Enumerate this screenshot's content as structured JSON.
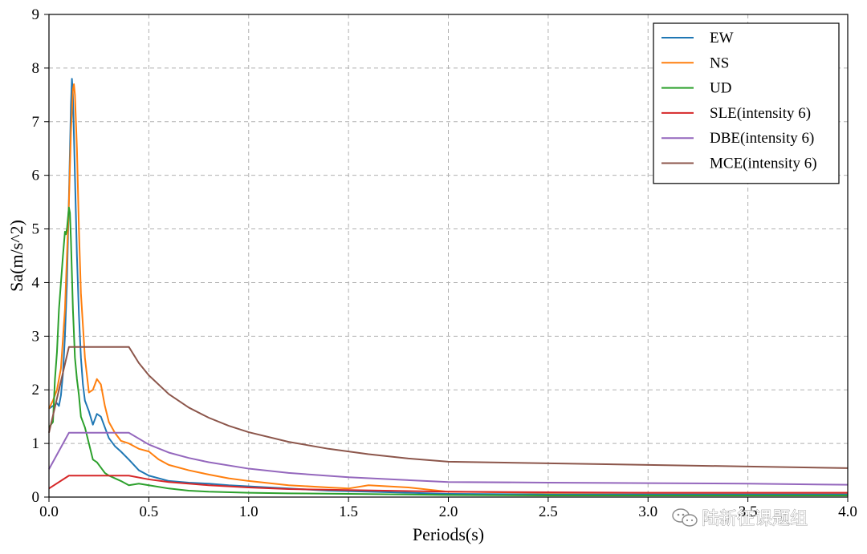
{
  "chart_data": {
    "type": "line",
    "xlabel": "Periods(s)",
    "ylabel": "Sa(m/s^2)",
    "xlim": [
      0,
      4.0
    ],
    "ylim": [
      0,
      9
    ],
    "xticks": [
      0.0,
      0.5,
      1.0,
      1.5,
      2.0,
      2.5,
      3.0,
      3.5,
      4.0
    ],
    "xtick_labels": [
      "0.0",
      "0.5",
      "1.0",
      "1.5",
      "2.0",
      "2.5",
      "3.0",
      "3.5",
      "4.0"
    ],
    "yticks": [
      0,
      1,
      2,
      3,
      4,
      5,
      6,
      7,
      8,
      9
    ],
    "ytick_labels": [
      "0",
      "1",
      "2",
      "3",
      "4",
      "5",
      "6",
      "7",
      "8",
      "9"
    ],
    "grid": true,
    "legend_position": "top-right",
    "series": [
      {
        "name": "EW",
        "color": "#1f77b4",
        "x": [
          0.0,
          0.02,
          0.04,
          0.05,
          0.06,
          0.07,
          0.08,
          0.09,
          0.1,
          0.11,
          0.115,
          0.12,
          0.13,
          0.14,
          0.15,
          0.16,
          0.17,
          0.18,
          0.2,
          0.22,
          0.24,
          0.26,
          0.28,
          0.3,
          0.33,
          0.36,
          0.4,
          0.45,
          0.5,
          0.6,
          0.7,
          0.8,
          0.9,
          1.0,
          1.2,
          1.4,
          1.6,
          1.8,
          2.0,
          2.5,
          3.0,
          3.5,
          4.0
        ],
        "y": [
          1.65,
          1.7,
          1.75,
          1.7,
          1.9,
          2.3,
          3.0,
          4.0,
          5.6,
          7.3,
          7.8,
          7.5,
          6.0,
          4.5,
          3.4,
          2.6,
          2.1,
          1.8,
          1.6,
          1.35,
          1.55,
          1.5,
          1.3,
          1.1,
          0.95,
          0.85,
          0.7,
          0.5,
          0.4,
          0.3,
          0.27,
          0.25,
          0.22,
          0.2,
          0.16,
          0.12,
          0.1,
          0.08,
          0.06,
          0.05,
          0.05,
          0.05,
          0.05
        ]
      },
      {
        "name": "NS",
        "color": "#ff7f0e",
        "x": [
          0.0,
          0.02,
          0.04,
          0.06,
          0.08,
          0.1,
          0.11,
          0.12,
          0.125,
          0.13,
          0.14,
          0.15,
          0.16,
          0.18,
          0.2,
          0.22,
          0.24,
          0.26,
          0.28,
          0.3,
          0.33,
          0.36,
          0.4,
          0.45,
          0.5,
          0.55,
          0.6,
          0.7,
          0.8,
          0.9,
          1.0,
          1.2,
          1.4,
          1.5,
          1.6,
          1.8,
          2.0,
          2.5,
          3.0,
          3.5,
          4.0
        ],
        "y": [
          1.65,
          1.8,
          2.0,
          2.4,
          3.5,
          5.5,
          6.8,
          7.6,
          7.7,
          7.5,
          6.5,
          5.0,
          3.8,
          2.6,
          1.95,
          2.0,
          2.2,
          2.1,
          1.7,
          1.4,
          1.2,
          1.05,
          1.0,
          0.9,
          0.85,
          0.7,
          0.6,
          0.5,
          0.42,
          0.35,
          0.3,
          0.22,
          0.18,
          0.16,
          0.22,
          0.18,
          0.1,
          0.08,
          0.08,
          0.08,
          0.08
        ]
      },
      {
        "name": "UD",
        "color": "#2ca02c",
        "x": [
          0.0,
          0.01,
          0.02,
          0.03,
          0.04,
          0.05,
          0.06,
          0.07,
          0.08,
          0.085,
          0.09,
          0.1,
          0.105,
          0.11,
          0.12,
          0.13,
          0.14,
          0.15,
          0.16,
          0.18,
          0.2,
          0.22,
          0.24,
          0.26,
          0.28,
          0.3,
          0.33,
          0.36,
          0.4,
          0.45,
          0.5,
          0.6,
          0.7,
          0.8,
          1.0,
          1.2,
          1.5,
          2.0,
          2.5,
          3.0,
          3.5,
          4.0
        ],
        "y": [
          1.3,
          1.35,
          1.4,
          2.2,
          2.7,
          3.5,
          4.0,
          4.5,
          4.95,
          4.9,
          5.0,
          5.4,
          5.3,
          4.8,
          3.5,
          2.6,
          2.2,
          1.9,
          1.5,
          1.3,
          1.0,
          0.7,
          0.65,
          0.55,
          0.45,
          0.4,
          0.35,
          0.3,
          0.22,
          0.25,
          0.22,
          0.16,
          0.12,
          0.1,
          0.08,
          0.07,
          0.06,
          0.04,
          0.03,
          0.03,
          0.03,
          0.03
        ]
      },
      {
        "name": "SLE(intensity 6)",
        "color": "#d62728",
        "x": [
          0.0,
          0.1,
          0.4,
          0.5,
          0.6,
          0.8,
          1.0,
          1.2,
          1.5,
          2.0,
          2.5,
          3.0,
          3.5,
          4.0
        ],
        "y": [
          0.16,
          0.4,
          0.4,
          0.33,
          0.28,
          0.22,
          0.18,
          0.15,
          0.13,
          0.1,
          0.09,
          0.08,
          0.08,
          0.08
        ]
      },
      {
        "name": "DBE(intensity 6)",
        "color": "#9467bd",
        "x": [
          0.0,
          0.1,
          0.4,
          0.5,
          0.6,
          0.7,
          0.8,
          1.0,
          1.2,
          1.5,
          2.0,
          2.5,
          3.0,
          3.5,
          4.0
        ],
        "y": [
          0.52,
          1.2,
          1.2,
          0.98,
          0.83,
          0.73,
          0.65,
          0.53,
          0.45,
          0.37,
          0.28,
          0.27,
          0.26,
          0.25,
          0.23
        ]
      },
      {
        "name": "MCE(intensity 6)",
        "color": "#8c564b",
        "x": [
          0.0,
          0.1,
          0.4,
          0.45,
          0.5,
          0.6,
          0.7,
          0.8,
          0.9,
          1.0,
          1.2,
          1.4,
          1.6,
          1.8,
          2.0,
          2.5,
          3.0,
          3.5,
          4.0
        ],
        "y": [
          1.2,
          2.8,
          2.8,
          2.5,
          2.27,
          1.92,
          1.67,
          1.48,
          1.33,
          1.21,
          1.03,
          0.9,
          0.8,
          0.72,
          0.66,
          0.63,
          0.6,
          0.57,
          0.54
        ]
      }
    ]
  },
  "watermark": {
    "text": "陆新征课题组",
    "icon": "wechat-icon"
  }
}
